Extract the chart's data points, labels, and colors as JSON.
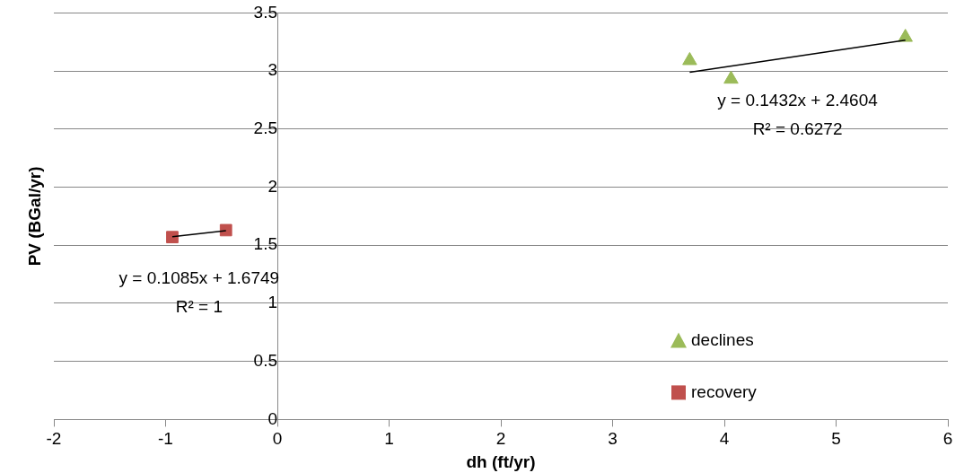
{
  "chart_data": {
    "type": "scatter",
    "xlabel": "dh (ft/yr)",
    "ylabel": "PV (BGal/yr)",
    "xlim": [
      -2,
      6
    ],
    "xticks": [
      -2,
      -1,
      0,
      1,
      2,
      3,
      4,
      5,
      6
    ],
    "ylim": [
      0,
      3.5
    ],
    "yticks": [
      0,
      0.5,
      1,
      1.5,
      2,
      2.5,
      3,
      3.5
    ],
    "grid": "y",
    "legend": "bottom right",
    "series": [
      {
        "name": "declines",
        "color": "#9bbb59",
        "marker": "triangle",
        "x": [
          3.69,
          4.06,
          5.62
        ],
        "values": [
          3.09,
          2.93,
          3.29
        ]
      },
      {
        "name": "recovery",
        "color": "#c0504d",
        "marker": "square",
        "x": [
          -0.94,
          -0.46
        ],
        "values": [
          1.57,
          1.63
        ]
      },
      {
        "type": "line",
        "color": "#000000",
        "marker": "none",
        "x": [
          3.69,
          5.62
        ],
        "values": [
          2.989,
          3.265
        ]
      },
      {
        "type": "line",
        "color": "#000000",
        "marker": "none",
        "x": [
          -0.94,
          -0.46
        ],
        "values": [
          1.573,
          1.625
        ]
      }
    ],
    "annotations": [
      "y = 0.1432x + 2.4604",
      "R² = 0.6272",
      "y = 0.1085x + 1.6749",
      "R² = 1"
    ]
  }
}
